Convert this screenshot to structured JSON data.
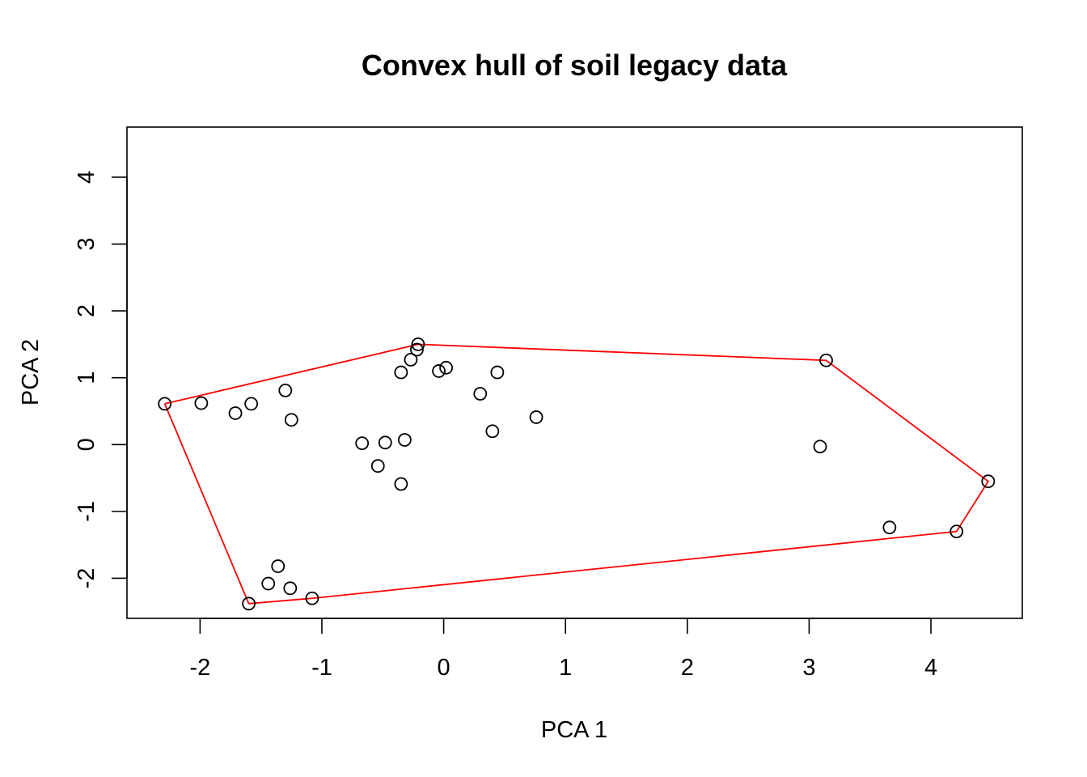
{
  "chart_data": {
    "type": "scatter",
    "title": "Convex hull of soil legacy data",
    "xlabel": "PCA 1",
    "ylabel": "PCA 2",
    "xlim": [
      -2.6,
      4.75
    ],
    "ylim": [
      -2.6,
      4.75
    ],
    "xticks": [
      -2,
      -1,
      0,
      1,
      2,
      3,
      4
    ],
    "yticks": [
      -2,
      -1,
      0,
      1,
      2,
      3,
      4
    ],
    "grid": false,
    "point_color": "#000000",
    "hull_color": "#ff0000",
    "points": [
      {
        "x": -2.29,
        "y": 0.61
      },
      {
        "x": -1.99,
        "y": 0.62
      },
      {
        "x": -1.71,
        "y": 0.47
      },
      {
        "x": -1.58,
        "y": 0.61
      },
      {
        "x": -1.3,
        "y": 0.81
      },
      {
        "x": -1.25,
        "y": 0.37
      },
      {
        "x": -0.67,
        "y": 0.02
      },
      {
        "x": -0.48,
        "y": 0.03
      },
      {
        "x": -0.32,
        "y": 0.07
      },
      {
        "x": -0.54,
        "y": -0.32
      },
      {
        "x": -0.35,
        "y": -0.59
      },
      {
        "x": -0.35,
        "y": 1.08
      },
      {
        "x": -0.27,
        "y": 1.27
      },
      {
        "x": -0.22,
        "y": 1.42
      },
      {
        "x": -0.21,
        "y": 1.5
      },
      {
        "x": -0.04,
        "y": 1.1
      },
      {
        "x": 0.02,
        "y": 1.15
      },
      {
        "x": 0.3,
        "y": 0.76
      },
      {
        "x": 0.4,
        "y": 0.2
      },
      {
        "x": 0.44,
        "y": 1.08
      },
      {
        "x": 0.76,
        "y": 0.41
      },
      {
        "x": 3.09,
        "y": -0.03
      },
      {
        "x": 3.14,
        "y": 1.26
      },
      {
        "x": 3.66,
        "y": -1.24
      },
      {
        "x": 4.21,
        "y": -1.3
      },
      {
        "x": 4.47,
        "y": -0.55
      },
      {
        "x": -1.36,
        "y": -1.82
      },
      {
        "x": -1.44,
        "y": -2.08
      },
      {
        "x": -1.26,
        "y": -2.15
      },
      {
        "x": -1.08,
        "y": -2.3
      },
      {
        "x": -1.6,
        "y": -2.38
      }
    ],
    "hull": [
      {
        "x": -2.29,
        "y": 0.61
      },
      {
        "x": -0.21,
        "y": 1.5
      },
      {
        "x": 3.14,
        "y": 1.26
      },
      {
        "x": 4.47,
        "y": -0.55
      },
      {
        "x": 4.21,
        "y": -1.3
      },
      {
        "x": -1.08,
        "y": -2.3
      },
      {
        "x": -1.6,
        "y": -2.38
      },
      {
        "x": -2.29,
        "y": 0.61
      }
    ]
  }
}
